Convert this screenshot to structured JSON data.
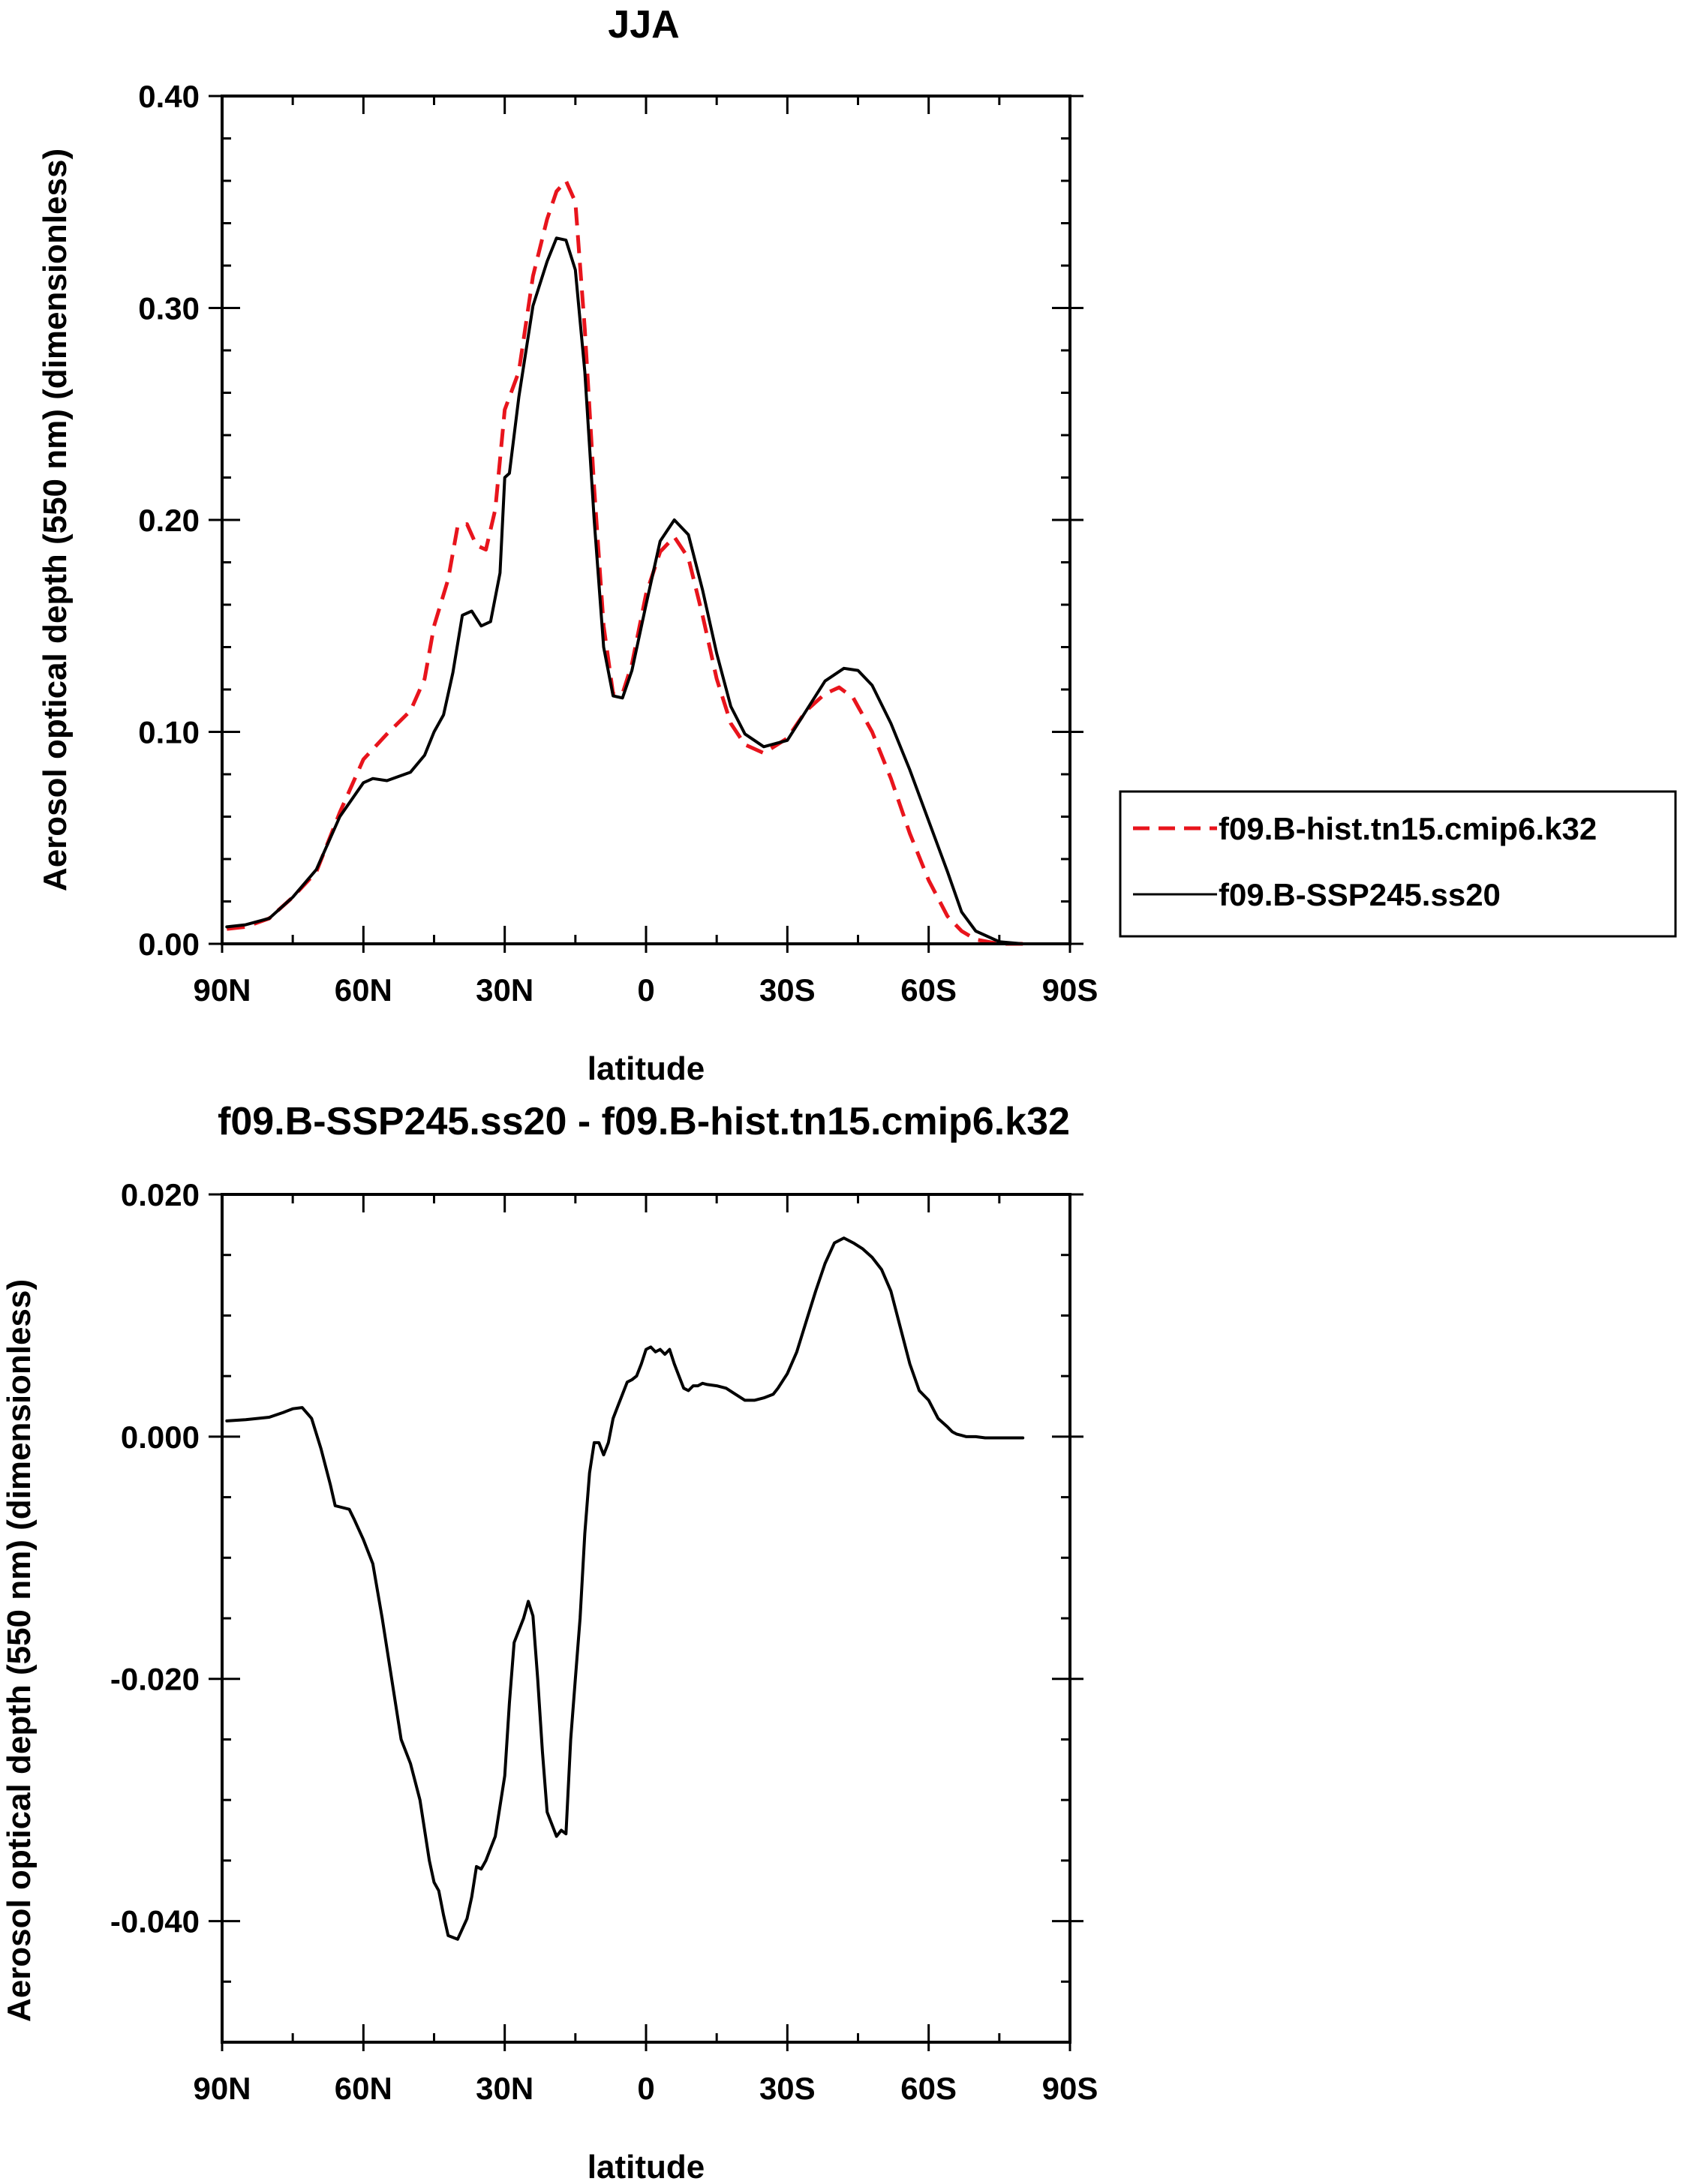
{
  "chart_data": [
    {
      "type": "line",
      "title": "JJA",
      "xlabel": "latitude",
      "ylabel": "Aerosol optical depth (550 nm) (dimensionless)",
      "xlim": [
        90,
        -90
      ],
      "ylim": [
        0,
        0.4
      ],
      "xticks": [
        90,
        60,
        30,
        0,
        -30,
        -60,
        -90
      ],
      "xtick_labels": [
        "90N",
        "60N",
        "30N",
        "0",
        "30S",
        "60S",
        "90S"
      ],
      "yticks": [
        0,
        0.1,
        0.2,
        0.3,
        0.4
      ],
      "ytick_labels": [
        "0.00",
        "0.10",
        "0.20",
        "0.30",
        "0.40"
      ],
      "legend_position": "right",
      "series": [
        {
          "name": "f09.B-hist.tn15.cmip6.k32",
          "color": "#e8141c",
          "style": "dashed",
          "x": [
            89,
            85,
            80,
            75,
            70,
            65,
            60,
            55,
            50,
            47,
            45,
            42,
            40,
            38,
            36,
            34,
            32,
            30,
            27,
            24,
            21,
            19,
            17,
            15,
            13,
            11,
            9,
            7,
            5,
            3,
            0,
            -3,
            -6,
            -9,
            -12,
            -15,
            -18,
            -21,
            -25,
            -30,
            -34,
            -38,
            -41,
            -44,
            -48,
            -52,
            -56,
            -60,
            -64,
            -67,
            -70,
            -75,
            -80
          ],
          "y": [
            0.007,
            0.008,
            0.012,
            0.022,
            0.034,
            0.062,
            0.087,
            0.099,
            0.11,
            0.125,
            0.15,
            0.172,
            0.197,
            0.198,
            0.188,
            0.186,
            0.205,
            0.252,
            0.27,
            0.315,
            0.342,
            0.355,
            0.36,
            0.35,
            0.29,
            0.215,
            0.15,
            0.118,
            0.118,
            0.132,
            0.165,
            0.185,
            0.192,
            0.182,
            0.155,
            0.125,
            0.104,
            0.094,
            0.09,
            0.097,
            0.11,
            0.118,
            0.121,
            0.116,
            0.1,
            0.078,
            0.052,
            0.03,
            0.013,
            0.006,
            0.002,
            0.0,
            0.0
          ]
        },
        {
          "name": "f09.B-SSP245.ss20",
          "color": "#000000",
          "style": "solid",
          "x": [
            89,
            85,
            80,
            75,
            70,
            65,
            60,
            58,
            55,
            50,
            47,
            45,
            43,
            41,
            39,
            37,
            35,
            33,
            31,
            30,
            29,
            27,
            24,
            21,
            19,
            17,
            15,
            13,
            11,
            9,
            7,
            5,
            3,
            0,
            -3,
            -6,
            -9,
            -12,
            -15,
            -18,
            -21,
            -25,
            -30,
            -34,
            -38,
            -42,
            -45,
            -48,
            -52,
            -56,
            -60,
            -64,
            -67,
            -70,
            -75,
            -80
          ],
          "y": [
            0.008,
            0.009,
            0.012,
            0.022,
            0.035,
            0.06,
            0.076,
            0.078,
            0.077,
            0.081,
            0.089,
            0.1,
            0.108,
            0.128,
            0.155,
            0.157,
            0.15,
            0.152,
            0.175,
            0.22,
            0.222,
            0.258,
            0.301,
            0.322,
            0.333,
            0.332,
            0.318,
            0.27,
            0.2,
            0.14,
            0.117,
            0.116,
            0.129,
            0.16,
            0.19,
            0.2,
            0.193,
            0.167,
            0.137,
            0.112,
            0.099,
            0.093,
            0.096,
            0.11,
            0.124,
            0.13,
            0.129,
            0.122,
            0.104,
            0.082,
            0.058,
            0.034,
            0.015,
            0.006,
            0.001,
            0.0
          ]
        }
      ]
    },
    {
      "type": "line",
      "title": "f09.B-SSP245.ss20 - f09.B-hist.tn15.cmip6.k32",
      "xlabel": "latitude",
      "ylabel": "Aerosol optical depth (550 nm) (dimensionless)",
      "xlim": [
        90,
        -90
      ],
      "ylim": [
        -0.05,
        0.02
      ],
      "xticks": [
        90,
        60,
        30,
        0,
        -30,
        -60,
        -90
      ],
      "xtick_labels": [
        "90N",
        "60N",
        "30N",
        "0",
        "30S",
        "60S",
        "90S"
      ],
      "yticks": [
        0.02,
        0.0,
        -0.02,
        -0.04
      ],
      "ytick_labels": [
        "0.020",
        "0.000",
        "-0.020",
        "-0.040"
      ],
      "series": [
        {
          "color": "#000000",
          "style": "solid",
          "x": [
            89,
            85,
            80,
            77,
            75,
            73,
            71,
            69,
            67,
            66,
            65,
            63,
            62,
            60,
            58,
            56,
            54,
            52,
            50,
            48,
            46,
            45,
            44,
            43,
            42,
            40,
            38,
            37,
            36,
            35,
            34,
            33,
            32,
            30,
            29,
            28,
            27,
            26,
            25,
            24,
            23,
            22,
            21,
            19,
            18,
            17,
            16,
            15,
            14,
            13,
            12,
            11,
            10,
            9,
            8,
            7,
            6,
            5,
            4,
            3,
            2,
            1,
            0,
            -1,
            -2,
            -3,
            -4,
            -5,
            -6,
            -7,
            -8,
            -9,
            -10,
            -11,
            -12,
            -13,
            -15,
            -17,
            -19,
            -21,
            -23,
            -25,
            -27,
            -28,
            -30,
            -32,
            -34,
            -36,
            -38,
            -40,
            -42,
            -44,
            -46,
            -48,
            -50,
            -52,
            -54,
            -56,
            -58,
            -60,
            -62,
            -64,
            -65,
            -66,
            -67,
            -68,
            -70,
            -72,
            -75,
            -80
          ],
          "y": [
            0.0013,
            0.0014,
            0.0016,
            0.002,
            0.0023,
            0.0024,
            0.0015,
            -0.001,
            -0.004,
            -0.0057,
            -0.0058,
            -0.006,
            -0.0068,
            -0.0085,
            -0.0105,
            -0.015,
            -0.02,
            -0.025,
            -0.027,
            -0.03,
            -0.035,
            -0.0368,
            -0.0375,
            -0.0395,
            -0.0412,
            -0.0415,
            -0.0398,
            -0.038,
            -0.0355,
            -0.0357,
            -0.035,
            -0.034,
            -0.033,
            -0.028,
            -0.022,
            -0.017,
            -0.016,
            -0.015,
            -0.0136,
            -0.0148,
            -0.02,
            -0.026,
            -0.031,
            -0.033,
            -0.0325,
            -0.0328,
            -0.025,
            -0.02,
            -0.015,
            -0.008,
            -0.003,
            -0.0005,
            -0.0005,
            -0.0015,
            -0.0005,
            0.0015,
            0.0025,
            0.0035,
            0.0045,
            0.0047,
            0.005,
            0.006,
            0.0072,
            0.0074,
            0.007,
            0.0072,
            0.0068,
            0.0072,
            0.006,
            0.005,
            0.004,
            0.0038,
            0.0042,
            0.0042,
            0.0044,
            0.0043,
            0.0042,
            0.004,
            0.0035,
            0.003,
            0.003,
            0.0032,
            0.0035,
            0.004,
            0.0052,
            0.007,
            0.0095,
            0.012,
            0.0143,
            0.016,
            0.0164,
            0.016,
            0.0155,
            0.0148,
            0.0138,
            0.012,
            0.009,
            0.006,
            0.0038,
            0.003,
            0.0015,
            0.0008,
            0.0004,
            0.0002,
            0.0001,
            0.0,
            0.0,
            -0.0001,
            -0.0001,
            -0.0001
          ]
        }
      ]
    }
  ],
  "legend": {
    "entries": [
      "f09.B-hist.tn15.cmip6.k32",
      "f09.B-SSP245.ss20"
    ]
  }
}
